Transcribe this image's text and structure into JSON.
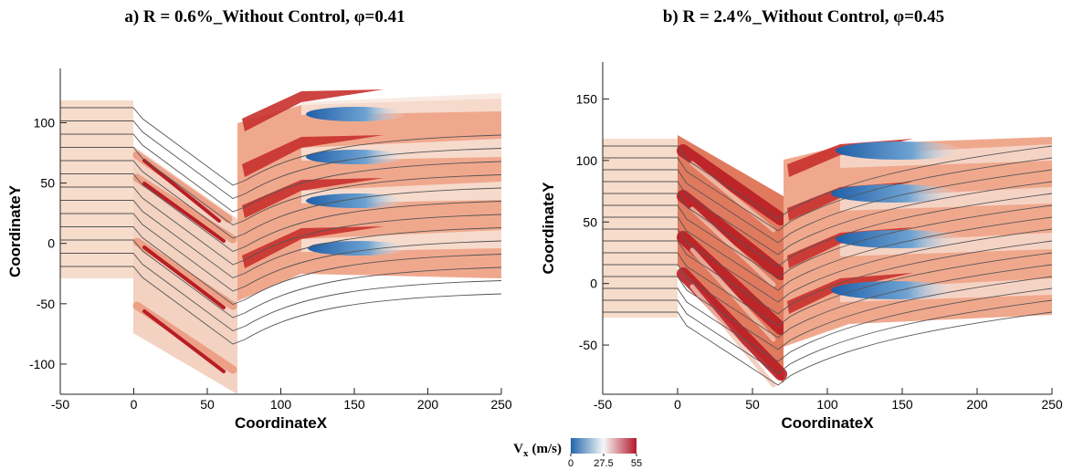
{
  "chart_data": [
    {
      "type": "contour",
      "title": "a) R = 0.6%_Without Control, φ=0.41",
      "xlabel": "CoordinateX",
      "ylabel": "CoordinateY",
      "xlim": [
        -50,
        250
      ],
      "ylim": [
        -125,
        145
      ],
      "xticks": [
        -50,
        0,
        50,
        100,
        150,
        200,
        250
      ],
      "yticks": [
        -100,
        -50,
        0,
        50,
        100
      ]
    },
    {
      "type": "contour",
      "title": "b) R = 2.4%_Without Control, φ=0.45",
      "xlabel": "CoordinateX",
      "ylabel": "CoordinateY",
      "xlim": [
        -50,
        250
      ],
      "ylim": [
        -90,
        180
      ],
      "xticks": [
        -50,
        0,
        50,
        100,
        150,
        200,
        250
      ],
      "yticks": [
        -50,
        0,
        50,
        100,
        150
      ]
    }
  ],
  "colorbar": {
    "label": "V",
    "label_sub": "x",
    "label_unit": "(m/s)",
    "lim": [
      0,
      55
    ],
    "ticks": [
      0,
      27.5,
      55
    ],
    "colors": [
      "#2166ac",
      "#f7f7f7",
      "#b2182b"
    ]
  }
}
